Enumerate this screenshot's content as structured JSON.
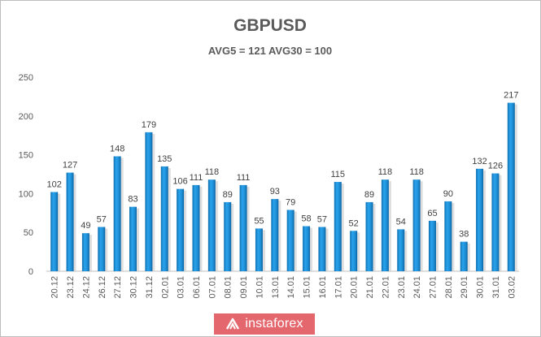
{
  "chart_data": {
    "type": "bar",
    "title": "GBPUSD",
    "subtitle": "AVG5 = 121 AVG30 = 100",
    "categories": [
      "20.12",
      "23.12",
      "24.12",
      "26.12",
      "27.12",
      "30.12",
      "31.12",
      "02.01",
      "03.01",
      "06.01",
      "07.01",
      "08.01",
      "09.01",
      "10.01",
      "13.01",
      "14.01",
      "15.01",
      "16.01",
      "17.01",
      "20.01",
      "21.01",
      "22.01",
      "23.01",
      "24.01",
      "27.01",
      "28.01",
      "29.01",
      "30.01",
      "31.01",
      "03.02"
    ],
    "values": [
      102,
      127,
      49,
      57,
      148,
      83,
      179,
      135,
      106,
      111,
      118,
      89,
      111,
      55,
      93,
      79,
      58,
      57,
      115,
      52,
      89,
      118,
      54,
      118,
      65,
      90,
      38,
      132,
      126,
      217
    ],
    "ylim": [
      0,
      250
    ],
    "yticks": [
      0,
      50,
      100,
      150,
      200,
      250
    ],
    "xlabel": "",
    "ylabel": "",
    "grid": false,
    "bar_color": "#1a8fd6"
  },
  "branding": {
    "logo_text": "instaforex",
    "logo_color": "#e5676e"
  }
}
